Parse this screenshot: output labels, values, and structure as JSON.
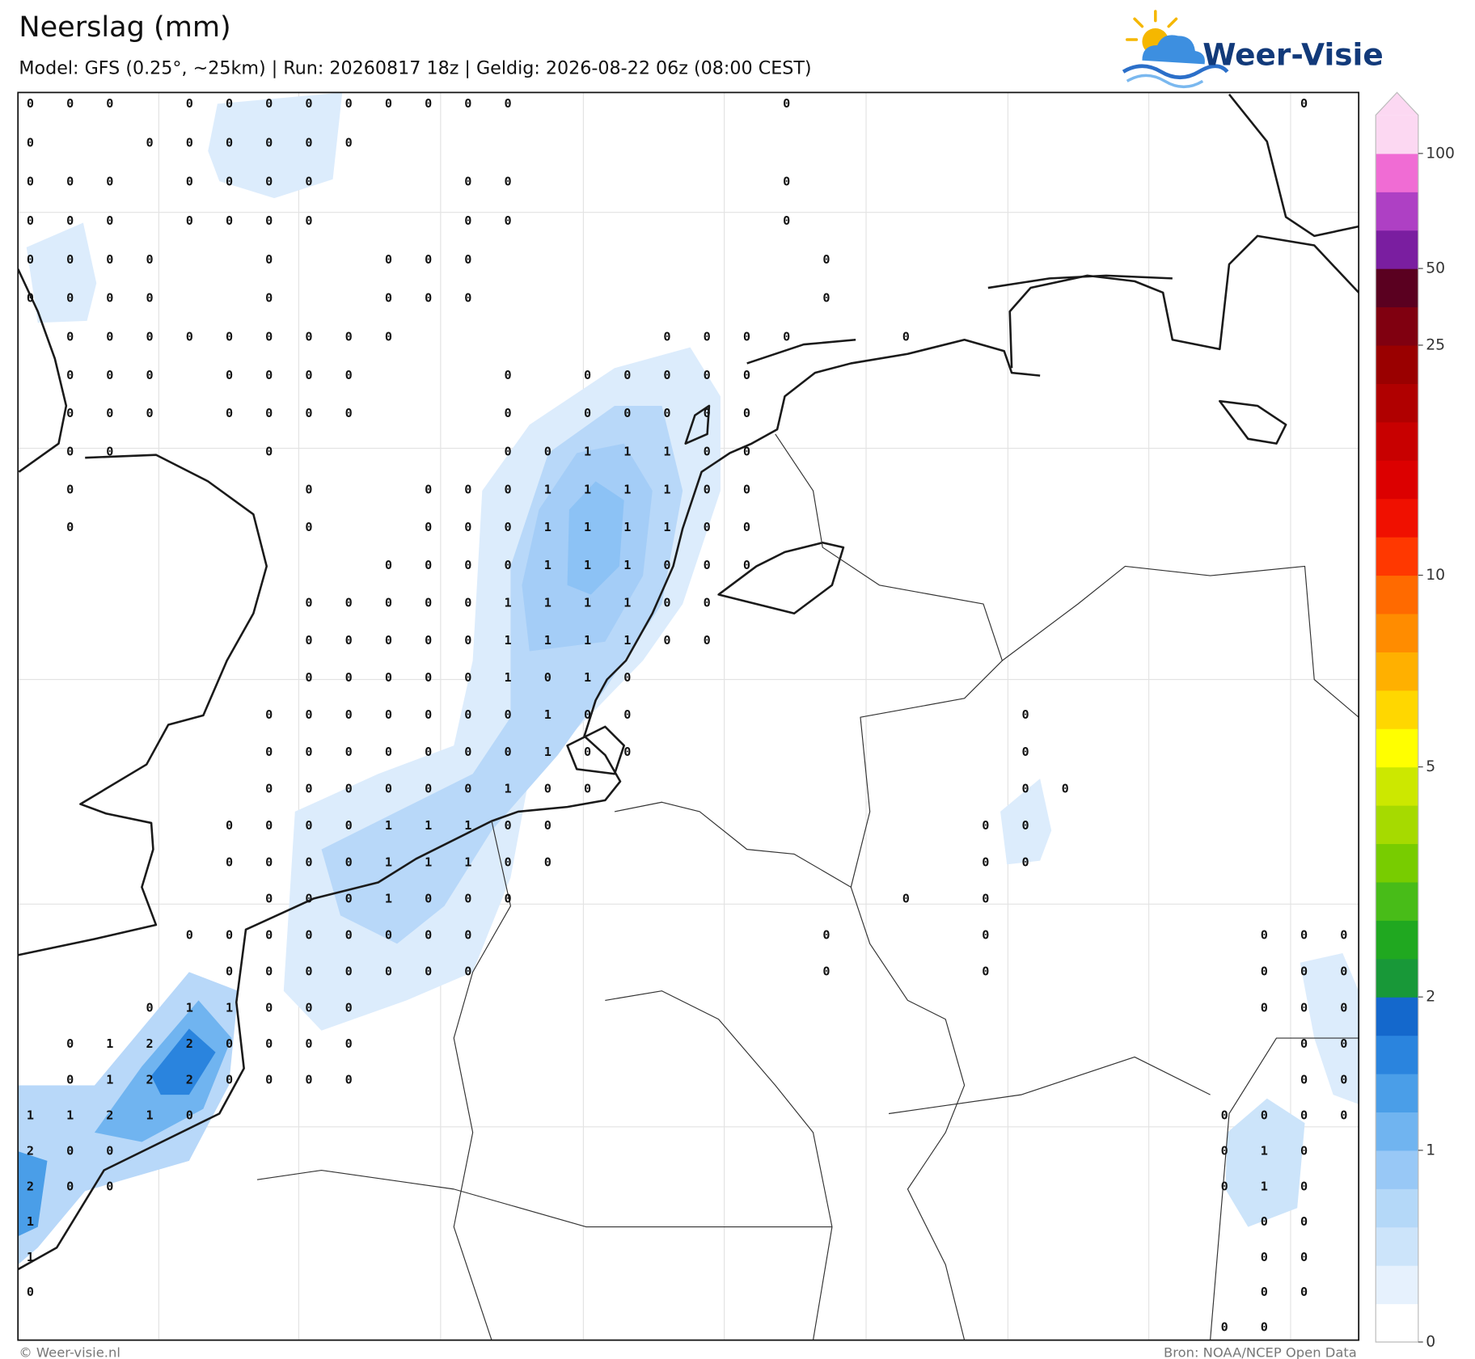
{
  "header": {
    "title": "Neerslag (mm)",
    "subtitle": "Model: GFS (0.25°, ~25km)  |  Run: 20260817 18z  |  Geldig: 2026-08-22 06z (08:00 CEST)"
  },
  "logo": {
    "text": "Weer-Visie"
  },
  "map": {
    "grid": [
      [
        0,
        0,
        0,
        null,
        0,
        0,
        0,
        0,
        0,
        0,
        0,
        0,
        0,
        null,
        null,
        null,
        null,
        null,
        null,
        0,
        null,
        null,
        null,
        null,
        null,
        null,
        null,
        null,
        null,
        null,
        null,
        null,
        0,
        null
      ],
      [
        0,
        null,
        null,
        0,
        0,
        0,
        0,
        0,
        0,
        null,
        null,
        null,
        null,
        null,
        null,
        null,
        null,
        null,
        null,
        null,
        null,
        null,
        null,
        null,
        null,
        null,
        null,
        null,
        null,
        null,
        null,
        null,
        null,
        null
      ],
      [
        0,
        0,
        0,
        null,
        0,
        0,
        0,
        0,
        null,
        null,
        null,
        0,
        0,
        null,
        null,
        null,
        null,
        null,
        null,
        0,
        null,
        null,
        null,
        null,
        null,
        null,
        null,
        null,
        null,
        null,
        null,
        null,
        null,
        null
      ],
      [
        0,
        0,
        0,
        null,
        0,
        0,
        0,
        0,
        null,
        null,
        null,
        0,
        0,
        null,
        null,
        null,
        null,
        null,
        null,
        0,
        null,
        null,
        null,
        null,
        null,
        null,
        null,
        null,
        null,
        null,
        null,
        null,
        null,
        null
      ],
      [
        0,
        0,
        0,
        0,
        null,
        null,
        0,
        null,
        null,
        0,
        0,
        0,
        null,
        null,
        null,
        null,
        null,
        null,
        null,
        null,
        0,
        null,
        null,
        null,
        null,
        null,
        null,
        null,
        null,
        null,
        null,
        null,
        null,
        null
      ],
      [
        0,
        0,
        0,
        0,
        null,
        null,
        0,
        null,
        null,
        0,
        0,
        0,
        null,
        null,
        null,
        null,
        null,
        null,
        null,
        null,
        0,
        null,
        null,
        null,
        null,
        null,
        null,
        null,
        null,
        null,
        null,
        null,
        null,
        null
      ],
      [
        null,
        0,
        0,
        0,
        0,
        0,
        0,
        0,
        0,
        0,
        null,
        null,
        null,
        null,
        null,
        null,
        0,
        0,
        0,
        0,
        null,
        null,
        0,
        null,
        null,
        null,
        null,
        null,
        null,
        null,
        null,
        null,
        null,
        null
      ],
      [
        null,
        0,
        0,
        0,
        null,
        0,
        0,
        0,
        0,
        null,
        null,
        null,
        0,
        null,
        0,
        0,
        0,
        0,
        0,
        null,
        null,
        null,
        null,
        null,
        null,
        null,
        null,
        null,
        null,
        null,
        null,
        null,
        null,
        null
      ],
      [
        null,
        0,
        0,
        0,
        null,
        0,
        0,
        0,
        0,
        null,
        null,
        null,
        0,
        null,
        0,
        0,
        0,
        0,
        0,
        null,
        null,
        null,
        null,
        null,
        null,
        null,
        null,
        null,
        null,
        null,
        null,
        null,
        null,
        null
      ],
      [
        null,
        0,
        0,
        null,
        null,
        null,
        0,
        null,
        null,
        null,
        null,
        null,
        0,
        0,
        1,
        1,
        1,
        0,
        0,
        null,
        null,
        null,
        null,
        null,
        null,
        null,
        null,
        null,
        null,
        null,
        null,
        null,
        null,
        null
      ],
      [
        null,
        0,
        null,
        null,
        null,
        null,
        null,
        0,
        null,
        null,
        0,
        0,
        0,
        1,
        1,
        1,
        1,
        0,
        0,
        null,
        null,
        null,
        null,
        null,
        null,
        null,
        null,
        null,
        null,
        null,
        null,
        null,
        null,
        null
      ],
      [
        null,
        0,
        null,
        null,
        null,
        null,
        null,
        0,
        null,
        null,
        0,
        0,
        0,
        1,
        1,
        1,
        1,
        0,
        0,
        null,
        null,
        null,
        null,
        null,
        null,
        null,
        null,
        null,
        null,
        null,
        null,
        null,
        null,
        null
      ],
      [
        null,
        null,
        null,
        null,
        null,
        null,
        null,
        null,
        null,
        0,
        0,
        0,
        0,
        1,
        1,
        1,
        0,
        0,
        0,
        null,
        null,
        null,
        null,
        null,
        null,
        null,
        null,
        null,
        null,
        null,
        null,
        null,
        null,
        null
      ],
      [
        null,
        null,
        null,
        null,
        null,
        null,
        null,
        0,
        0,
        0,
        0,
        0,
        1,
        1,
        1,
        1,
        0,
        0,
        null,
        null,
        null,
        null,
        null,
        null,
        null,
        null,
        null,
        null,
        null,
        null,
        null,
        null,
        null,
        null
      ],
      [
        null,
        null,
        null,
        null,
        null,
        null,
        null,
        0,
        0,
        0,
        0,
        0,
        1,
        1,
        1,
        1,
        0,
        0,
        null,
        null,
        null,
        null,
        null,
        null,
        null,
        null,
        null,
        null,
        null,
        null,
        null,
        null,
        null,
        null
      ],
      [
        null,
        null,
        null,
        null,
        null,
        null,
        null,
        0,
        0,
        0,
        0,
        0,
        1,
        0,
        1,
        0,
        null,
        null,
        null,
        null,
        null,
        null,
        null,
        null,
        null,
        null,
        null,
        null,
        null,
        null,
        null,
        null,
        null,
        null
      ],
      [
        null,
        null,
        null,
        null,
        null,
        null,
        0,
        0,
        0,
        0,
        0,
        0,
        0,
        1,
        0,
        0,
        null,
        null,
        null,
        null,
        null,
        null,
        null,
        null,
        null,
        0,
        null,
        null,
        null,
        null,
        null,
        null,
        null,
        null
      ],
      [
        null,
        null,
        null,
        null,
        null,
        null,
        0,
        0,
        0,
        0,
        0,
        0,
        0,
        1,
        0,
        0,
        null,
        null,
        null,
        null,
        null,
        null,
        null,
        null,
        null,
        0,
        null,
        null,
        null,
        null,
        null,
        null,
        null,
        null
      ],
      [
        null,
        null,
        null,
        null,
        null,
        null,
        0,
        0,
        0,
        0,
        0,
        0,
        1,
        0,
        0,
        null,
        null,
        null,
        null,
        null,
        null,
        null,
        null,
        null,
        null,
        0,
        0,
        null,
        null,
        null,
        null,
        null,
        null,
        null
      ],
      [
        null,
        null,
        null,
        null,
        null,
        0,
        0,
        0,
        0,
        1,
        1,
        1,
        0,
        0,
        null,
        null,
        null,
        null,
        null,
        null,
        null,
        null,
        null,
        null,
        0,
        0,
        null,
        null,
        null,
        null,
        null,
        null,
        null,
        null
      ],
      [
        null,
        null,
        null,
        null,
        null,
        0,
        0,
        0,
        0,
        1,
        1,
        1,
        0,
        0,
        null,
        null,
        null,
        null,
        null,
        null,
        null,
        null,
        null,
        null,
        0,
        0,
        null,
        null,
        null,
        null,
        null,
        null,
        null,
        null
      ],
      [
        null,
        null,
        null,
        null,
        null,
        null,
        0,
        0,
        0,
        1,
        0,
        0,
        0,
        null,
        null,
        null,
        null,
        null,
        null,
        null,
        null,
        null,
        0,
        null,
        0,
        null,
        null,
        null,
        null,
        null,
        null,
        null,
        null,
        null
      ],
      [
        null,
        null,
        null,
        null,
        0,
        0,
        0,
        0,
        0,
        0,
        0,
        0,
        null,
        null,
        null,
        null,
        null,
        null,
        null,
        null,
        0,
        null,
        null,
        null,
        0,
        null,
        null,
        null,
        null,
        null,
        null,
        0,
        0,
        0
      ],
      [
        null,
        null,
        null,
        null,
        null,
        0,
        0,
        0,
        0,
        0,
        0,
        0,
        null,
        null,
        null,
        null,
        null,
        null,
        null,
        null,
        0,
        null,
        null,
        null,
        0,
        null,
        null,
        null,
        null,
        null,
        null,
        0,
        0,
        0
      ],
      [
        null,
        null,
        null,
        0,
        1,
        1,
        0,
        0,
        0,
        null,
        null,
        null,
        null,
        null,
        null,
        null,
        null,
        null,
        null,
        null,
        null,
        null,
        null,
        null,
        null,
        null,
        null,
        null,
        null,
        null,
        null,
        0,
        0,
        0
      ],
      [
        null,
        0,
        1,
        2,
        2,
        0,
        0,
        0,
        0,
        null,
        null,
        null,
        null,
        null,
        null,
        null,
        null,
        null,
        null,
        null,
        null,
        null,
        null,
        null,
        null,
        null,
        null,
        null,
        null,
        null,
        null,
        null,
        0,
        0
      ],
      [
        null,
        0,
        1,
        2,
        2,
        0,
        0,
        0,
        0,
        null,
        null,
        null,
        null,
        null,
        null,
        null,
        null,
        null,
        null,
        null,
        null,
        null,
        null,
        null,
        null,
        null,
        null,
        null,
        null,
        null,
        null,
        null,
        0,
        0
      ],
      [
        1,
        1,
        2,
        1,
        0,
        null,
        null,
        null,
        null,
        null,
        null,
        null,
        null,
        null,
        null,
        null,
        null,
        null,
        null,
        null,
        null,
        null,
        null,
        null,
        null,
        null,
        null,
        null,
        null,
        null,
        0,
        0,
        0,
        0
      ],
      [
        2,
        0,
        0,
        null,
        null,
        null,
        null,
        null,
        null,
        null,
        null,
        null,
        null,
        null,
        null,
        null,
        null,
        null,
        null,
        null,
        null,
        null,
        null,
        null,
        null,
        null,
        null,
        null,
        null,
        null,
        0,
        1,
        0,
        null
      ],
      [
        2,
        0,
        0,
        null,
        null,
        null,
        null,
        null,
        null,
        null,
        null,
        null,
        null,
        null,
        null,
        null,
        null,
        null,
        null,
        null,
        null,
        null,
        null,
        null,
        null,
        null,
        null,
        null,
        null,
        null,
        0,
        1,
        0,
        null
      ],
      [
        1,
        null,
        null,
        null,
        null,
        null,
        null,
        null,
        null,
        null,
        null,
        null,
        null,
        null,
        null,
        null,
        null,
        null,
        null,
        null,
        null,
        null,
        null,
        null,
        null,
        null,
        null,
        null,
        null,
        null,
        null,
        0,
        0,
        null
      ],
      [
        1,
        null,
        null,
        null,
        null,
        null,
        null,
        null,
        null,
        null,
        null,
        null,
        null,
        null,
        null,
        null,
        null,
        null,
        null,
        null,
        null,
        null,
        null,
        null,
        null,
        null,
        null,
        null,
        null,
        null,
        null,
        0,
        0,
        null
      ],
      [
        0,
        null,
        null,
        null,
        null,
        null,
        null,
        null,
        null,
        null,
        null,
        null,
        null,
        null,
        null,
        null,
        null,
        null,
        null,
        null,
        null,
        null,
        null,
        null,
        null,
        null,
        null,
        null,
        null,
        null,
        null,
        0,
        0,
        null
      ],
      [
        null,
        null,
        null,
        null,
        null,
        null,
        null,
        null,
        null,
        null,
        null,
        null,
        null,
        null,
        null,
        null,
        null,
        null,
        null,
        null,
        null,
        null,
        null,
        null,
        null,
        null,
        null,
        null,
        null,
        null,
        0,
        0,
        null,
        null
      ]
    ]
  },
  "colorbar": {
    "colors": [
      "#ffffff",
      "#e6f1fd",
      "#cce4fa",
      "#b4d8f8",
      "#98c8f6",
      "#70b4f0",
      "#4a9ee8",
      "#2a84de",
      "#1468cc",
      "#189838",
      "#20a820",
      "#48bc18",
      "#78cc00",
      "#a6da00",
      "#cce800",
      "#ffff00",
      "#ffd700",
      "#ffb000",
      "#ff8c00",
      "#ff6a00",
      "#ff3800",
      "#f01000",
      "#dc0000",
      "#c80000",
      "#b00000",
      "#9a0000",
      "#800010",
      "#5a0020",
      "#7a1ea0",
      "#ae40c4",
      "#f06cd4",
      "#fcd8f2"
    ],
    "over_color": "#fcd8f2",
    "ticks": [
      0,
      1,
      2,
      5,
      10,
      25,
      50,
      100
    ]
  },
  "footer": {
    "left": "© Weer-visie.nl",
    "right": "Bron: NOAA/NCEP Open Data"
  }
}
